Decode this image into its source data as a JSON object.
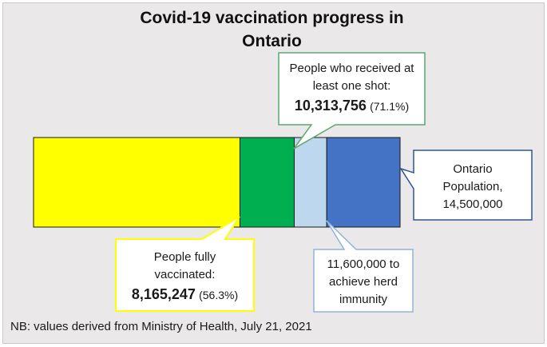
{
  "chart_data": {
    "type": "bar",
    "orientation": "horizontal",
    "stacked": true,
    "title": [
      "Covid-19 vaccination progress in",
      "Ontario"
    ],
    "total": 14500000,
    "segments": [
      {
        "value": 8165247,
        "color": "#ffff00"
      },
      {
        "value": 2148509,
        "color": "#00b050"
      },
      {
        "value": 1286244,
        "color": "#bdd7ee"
      },
      {
        "value": 2900000,
        "color": "#4472c4"
      }
    ],
    "annotations": {
      "fully_vaccinated": {
        "line1": "People fully",
        "line2": "vaccinated:",
        "value": "8,165,247",
        "pct": "(56.3%)",
        "border": "#ffff00"
      },
      "one_shot": {
        "line1": "People who received at",
        "line2": "least one shot:",
        "value": "10,313,756",
        "pct": "(71.1%)",
        "border": "#5aa96b"
      },
      "herd": {
        "line1": "11,600,000 to",
        "line2": "achieve herd",
        "line3": "immunity",
        "border": "#8fb3dd"
      },
      "population": {
        "line1": "Ontario",
        "line2": "Population,",
        "line3": "14,500,000",
        "border": "#2f5597"
      }
    },
    "footnote": "NB: values derived from Ministry of Health, July 21, 2021"
  }
}
